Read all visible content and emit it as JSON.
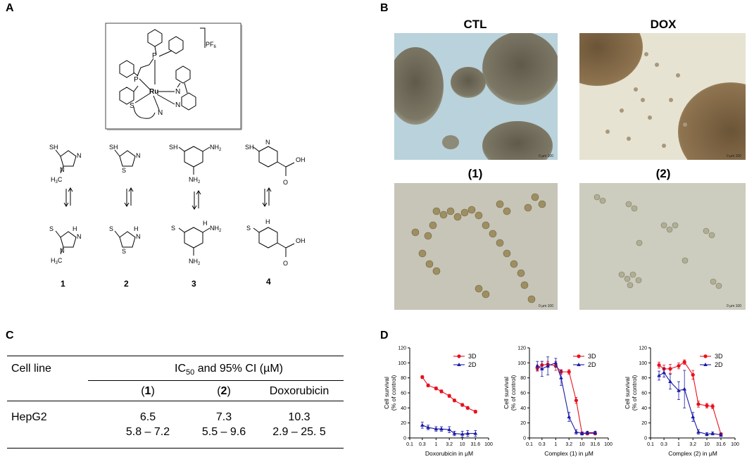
{
  "panels": {
    "A": "A",
    "B": "B",
    "C": "C",
    "D": "D"
  },
  "structure": {
    "counterion_prefix": "PF",
    "counterion_sub": "6",
    "metal": "Ru",
    "atoms": {
      "p1": "P",
      "p2": "P",
      "s": "S",
      "n": "N",
      "bipy_n1": "N",
      "bipy_n2": "N"
    },
    "ligand_labels": [
      "1",
      "2",
      "3",
      "4"
    ],
    "ligand_text": {
      "sh": "SH",
      "s": "S",
      "n": "N",
      "h": "H",
      "nh2": "NH",
      "two": "2",
      "h3c": "H",
      "three": "3",
      "c": "C",
      "oh": "OH",
      "o": "O"
    }
  },
  "micrographs": {
    "titles": [
      "CTL",
      "DOX",
      "(1)",
      "(2)"
    ],
    "scale_text": "0      µm      100"
  },
  "table": {
    "header_col1": "Cell line",
    "header_group": "IC",
    "header_group_sub": "50",
    "header_group_rest": " and 95% CI (µM)",
    "col_labels": [
      {
        "pre": "(",
        "bold": "1",
        "post": ")"
      },
      {
        "pre": "(",
        "bold": "2",
        "post": ")"
      },
      {
        "pre": "",
        "bold": "",
        "post": "Doxorubicin"
      }
    ],
    "row_label": "HepG2",
    "ic50": [
      "6.5",
      "7.3",
      "10.3"
    ],
    "ci": [
      "5.8 – 7.2",
      "5.5 – 9.6",
      "2.9 – 25. 5"
    ]
  },
  "chart_data": [
    {
      "type": "line",
      "xlabel": "Doxorubicin in μM",
      "ylabel": "Cell survival (% of control)",
      "xscale": "log",
      "xlim": [
        0.1,
        100
      ],
      "ylim": [
        0,
        120
      ],
      "xticks": [
        "0.1",
        "0.3",
        "1",
        "3.2",
        "10",
        "31.6",
        "100"
      ],
      "yticks": [
        0,
        20,
        40,
        60,
        80,
        100,
        120
      ],
      "legend": "top-right",
      "x": [
        0.3,
        0.5,
        1,
        1.6,
        3.2,
        5,
        10,
        16,
        31.6
      ],
      "series": [
        {
          "name": "3D",
          "color": "#e8101e",
          "marker": "circle",
          "values": [
            81,
            70,
            66,
            62,
            56,
            50,
            44,
            40,
            35
          ],
          "err": [
            2,
            2,
            2,
            2,
            2,
            2,
            2,
            2,
            2
          ]
        },
        {
          "name": "2D",
          "color": "#1a1aa8",
          "marker": "triangle",
          "values": [
            17,
            14,
            12,
            12,
            11,
            6,
            5,
            6,
            6
          ],
          "err": [
            4,
            3,
            3,
            3,
            4,
            3,
            4,
            4,
            4
          ]
        }
      ]
    },
    {
      "type": "line",
      "xlabel": "Complex (1) in μM",
      "ylabel": "Cell survival (% of control)",
      "xscale": "log",
      "xlim": [
        0.1,
        100
      ],
      "ylim": [
        0,
        120
      ],
      "xticks": [
        "0.1",
        "0.3",
        "1",
        "3.2",
        "10",
        "31.6",
        "100"
      ],
      "yticks": [
        0,
        20,
        40,
        60,
        80,
        100,
        120
      ],
      "legend": "top-right",
      "x": [
        0.2,
        0.3,
        0.5,
        1,
        1.6,
        3.2,
        6,
        10,
        16,
        31.6
      ],
      "series": [
        {
          "name": "3D",
          "color": "#e8101e",
          "marker": "circle",
          "values": [
            93,
            97,
            98,
            96,
            88,
            88,
            50,
            6,
            6,
            6
          ],
          "err": [
            4,
            5,
            4,
            6,
            3,
            3,
            4,
            2,
            2,
            2
          ]
        },
        {
          "name": "2D",
          "color": "#1a1aa8",
          "marker": "triangle",
          "values": [
            96,
            92,
            96,
            100,
            80,
            28,
            8,
            6,
            7,
            7
          ],
          "err": [
            6,
            10,
            12,
            6,
            10,
            6,
            3,
            2,
            2,
            2
          ]
        }
      ]
    },
    {
      "type": "line",
      "xlabel": "Complex (2) in μM",
      "ylabel": "Cell survival (% of control)",
      "xscale": "log",
      "xlim": [
        0.1,
        100
      ],
      "ylim": [
        0,
        120
      ],
      "xticks": [
        "0.1",
        "0.3",
        "1",
        "3.2",
        "10",
        "31.6",
        "100"
      ],
      "yticks": [
        0,
        20,
        40,
        60,
        80,
        100,
        120
      ],
      "legend": "top-right",
      "x": [
        0.2,
        0.3,
        0.5,
        1,
        1.6,
        3.2,
        5,
        10,
        16,
        31.6
      ],
      "series": [
        {
          "name": "3D",
          "color": "#e8101e",
          "marker": "circle",
          "values": [
            97,
            92,
            92,
            96,
            101,
            84,
            45,
            43,
            42,
            5
          ],
          "err": [
            4,
            5,
            6,
            4,
            3,
            6,
            4,
            3,
            3,
            2
          ]
        },
        {
          "name": "2D",
          "color": "#1a1aa8",
          "marker": "triangle",
          "values": [
            83,
            87,
            75,
            63,
            65,
            28,
            8,
            5,
            6,
            4
          ],
          "err": [
            6,
            6,
            10,
            12,
            25,
            6,
            3,
            2,
            2,
            2
          ]
        }
      ]
    }
  ]
}
